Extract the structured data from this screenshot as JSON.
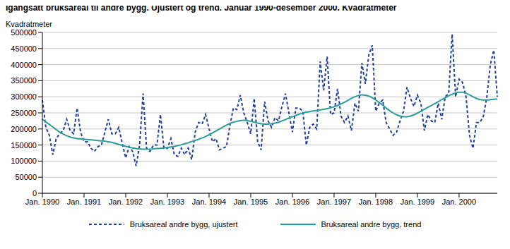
{
  "chart_data": {
    "type": "line",
    "title": "Igangsatt bruksareal til andre bygg. Ujustert og trend. Januar 1990-desember 2000. Kvadratmeter",
    "y_label": "Kvadratmeter",
    "categories": [
      "Jan. 1990",
      null,
      null,
      null,
      null,
      null,
      null,
      null,
      null,
      null,
      null,
      null,
      "Jan. 1991",
      null,
      null,
      null,
      null,
      null,
      null,
      null,
      null,
      null,
      null,
      null,
      "Jan. 1992",
      null,
      null,
      null,
      null,
      null,
      null,
      null,
      null,
      null,
      null,
      null,
      "Jan. 1993",
      null,
      null,
      null,
      null,
      null,
      null,
      null,
      null,
      null,
      null,
      null,
      "Jan. 1994",
      null,
      null,
      null,
      null,
      null,
      null,
      null,
      null,
      null,
      null,
      null,
      "Jan. 1995",
      null,
      null,
      null,
      null,
      null,
      null,
      null,
      null,
      null,
      null,
      null,
      "Jan. 1996",
      null,
      null,
      null,
      null,
      null,
      null,
      null,
      null,
      null,
      null,
      null,
      "Jan. 1997",
      null,
      null,
      null,
      null,
      null,
      null,
      null,
      null,
      null,
      null,
      null,
      "Jan. 1998",
      null,
      null,
      null,
      null,
      null,
      null,
      null,
      null,
      null,
      null,
      null,
      "Jan. 1999",
      null,
      null,
      null,
      null,
      null,
      null,
      null,
      null,
      null,
      null,
      null,
      "Jan. 2000",
      null,
      null,
      null,
      null,
      null,
      null,
      null,
      null,
      null,
      null,
      null
    ],
    "series": [
      {
        "name": "Bruksareal andre bygg, ujustert",
        "color": "#1f3f99",
        "line_style": "dashed",
        "marker": "none",
        "values": [
          290000,
          205000,
          180000,
          120000,
          170000,
          185000,
          195000,
          230000,
          195000,
          185000,
          265000,
          190000,
          160000,
          160000,
          140000,
          130000,
          145000,
          150000,
          190000,
          230000,
          185000,
          185000,
          205000,
          155000,
          110000,
          145000,
          130000,
          85000,
          150000,
          310000,
          140000,
          130000,
          150000,
          150000,
          245000,
          140000,
          140000,
          170000,
          120000,
          115000,
          140000,
          120000,
          140000,
          105000,
          190000,
          220000,
          215000,
          245000,
          200000,
          160000,
          170000,
          135000,
          140000,
          145000,
          210000,
          265000,
          260000,
          305000,
          250000,
          220000,
          185000,
          295000,
          160000,
          135000,
          285000,
          225000,
          205000,
          235000,
          225000,
          270000,
          310000,
          250000,
          190000,
          265000,
          265000,
          255000,
          150000,
          205000,
          215000,
          200000,
          410000,
          320000,
          425000,
          245000,
          250000,
          325000,
          240000,
          220000,
          240000,
          195000,
          280000,
          255000,
          405000,
          340000,
          430000,
          460000,
          255000,
          280000,
          290000,
          220000,
          200000,
          180000,
          190000,
          225000,
          255000,
          330000,
          295000,
          270000,
          305000,
          280000,
          195000,
          245000,
          225000,
          220000,
          280000,
          230000,
          300000,
          310000,
          495000,
          300000,
          355000,
          345000,
          300000,
          180000,
          140000,
          220000,
          220000,
          240000,
          300000,
          400000,
          445000,
          300000
        ]
      },
      {
        "name": "Bruksareal andre bygg, trend",
        "color": "#2a9d9a",
        "line_style": "solid",
        "marker": "none",
        "values": [
          230000,
          222000,
          214000,
          206000,
          198000,
          190000,
          184000,
          179000,
          175000,
          172000,
          170000,
          169000,
          168000,
          167000,
          166000,
          165000,
          164000,
          163000,
          162000,
          160000,
          158000,
          155000,
          152000,
          149000,
          146000,
          143000,
          141000,
          139000,
          138000,
          137000,
          137000,
          137000,
          138000,
          139000,
          140000,
          141000,
          142000,
          144000,
          146000,
          148000,
          151000,
          154000,
          157000,
          161000,
          164000,
          168000,
          172000,
          177000,
          182000,
          188000,
          194000,
          200000,
          206000,
          212000,
          217000,
          221000,
          224000,
          226000,
          227000,
          226000,
          224000,
          221000,
          218000,
          216000,
          215000,
          215000,
          216000,
          218000,
          221000,
          225000,
          229000,
          234000,
          238000,
          242000,
          246000,
          249000,
          252000,
          254000,
          256000,
          257000,
          259000,
          261000,
          263000,
          266000,
          269000,
          273000,
          278000,
          283000,
          289000,
          295000,
          300000,
          304000,
          306000,
          305000,
          302000,
          297000,
          290000,
          282000,
          274000,
          265000,
          257000,
          250000,
          244000,
          240000,
          238000,
          238000,
          240000,
          244000,
          249000,
          255000,
          261000,
          267000,
          273000,
          279000,
          285000,
          291000,
          297000,
          303000,
          308000,
          312000,
          314000,
          314000,
          311000,
          306000,
          300000,
          295000,
          291000,
          290000,
          290000,
          291000,
          292000,
          293000
        ]
      }
    ],
    "ylim": [
      0,
      500000
    ],
    "yticks": [
      0,
      50000,
      100000,
      150000,
      200000,
      250000,
      300000,
      350000,
      400000,
      450000,
      500000
    ],
    "grid": true,
    "legend": "bottom"
  }
}
